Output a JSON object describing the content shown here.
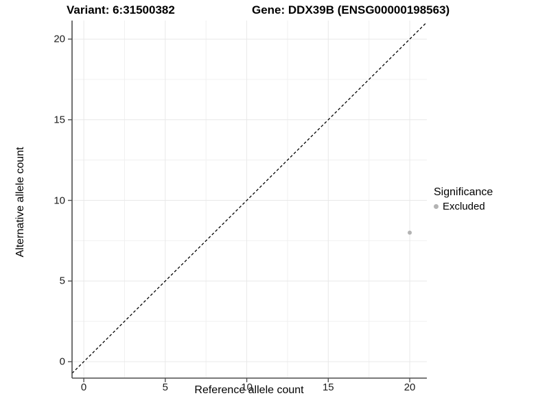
{
  "titles": {
    "variant": "Variant: 6:31500382",
    "gene": "Gene: DDX39B (ENSG00000198563)"
  },
  "axes": {
    "x_label": "Reference allele count",
    "y_label": "Alternative allele count"
  },
  "legend": {
    "title": "Significance",
    "items": [
      {
        "label": "Excluded",
        "color": "#b3b3b3"
      }
    ]
  },
  "chart_data": {
    "type": "scatter",
    "title_left": "Variant: 6:31500382",
    "title_right": "Gene: DDX39B (ENSG00000198563)",
    "xlabel": "Reference allele count",
    "ylabel": "Alternative allele count",
    "x_ticks": [
      0,
      5,
      10,
      15,
      20
    ],
    "y_ticks": [
      0,
      5,
      10,
      15,
      20
    ],
    "x_minor": [
      2.5,
      7.5,
      12.5,
      17.5
    ],
    "y_minor": [
      2.5,
      7.5,
      12.5,
      17.5
    ],
    "xlim": [
      -0.72,
      21.05
    ],
    "ylim": [
      -1.02,
      21.15
    ],
    "grid": true,
    "identity_line": {
      "style": "dashed",
      "equation": "y = x",
      "color": "#000000"
    },
    "series": [
      {
        "name": "Excluded",
        "color": "#b3b3b3",
        "points": [
          {
            "x": 20,
            "y": 8
          }
        ]
      }
    ],
    "legend_position": "right",
    "colors": {
      "excluded_point": "#b3b3b3",
      "grid_major": "#e8e8e8",
      "grid_minor": "#f0f0f0",
      "axis_line": "#4d4d4d",
      "text": "#000000"
    }
  }
}
